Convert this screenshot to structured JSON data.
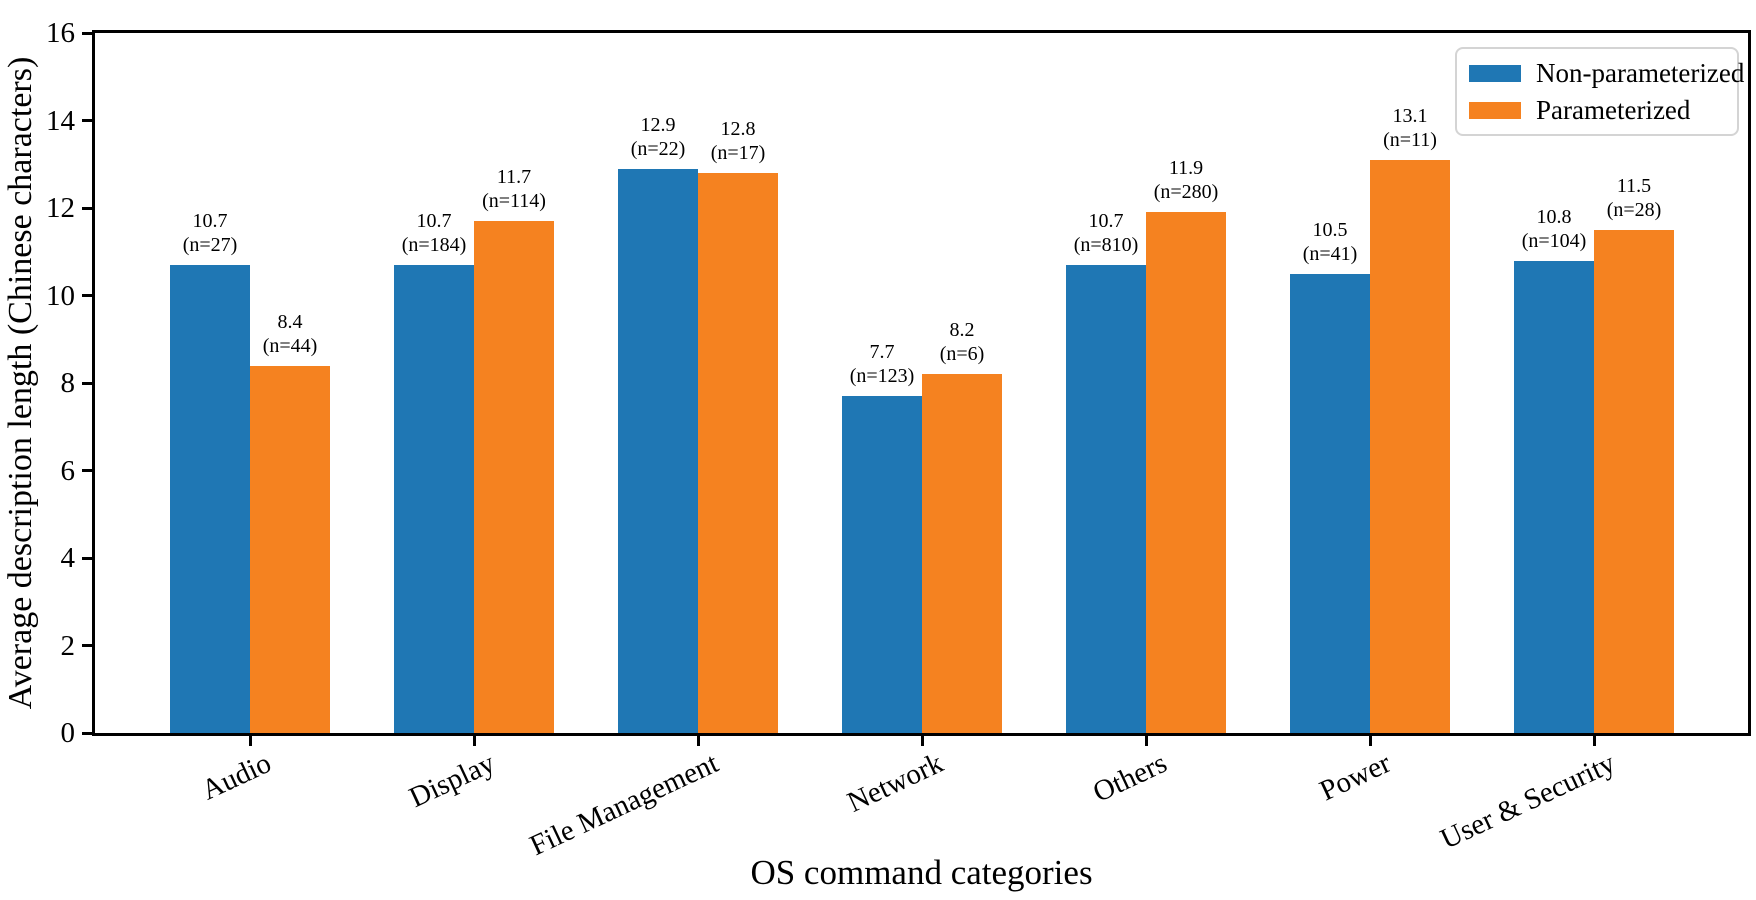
{
  "chart_data": {
    "type": "bar",
    "title": "",
    "xlabel": "OS command categories",
    "ylabel": "Average description length (Chinese characters)",
    "categories": [
      "Audio",
      "Display",
      "File Management",
      "Network",
      "Others",
      "Power",
      "User & Security"
    ],
    "series": [
      {
        "name": "Non-parameterized",
        "color": "#1f77b4",
        "values": [
          10.7,
          10.7,
          12.9,
          7.7,
          10.7,
          10.5,
          10.8
        ],
        "counts": [
          27,
          184,
          22,
          123,
          810,
          41,
          104
        ]
      },
      {
        "name": "Parameterized",
        "color": "#f58220",
        "values": [
          8.4,
          11.7,
          12.8,
          8.2,
          11.9,
          13.1,
          11.5
        ],
        "counts": [
          44,
          114,
          17,
          6,
          280,
          11,
          28
        ]
      }
    ],
    "annotations": {
      "non_parameterized": [
        "10.7\n(n=27)",
        "10.7\n(n=184)",
        "12.9\n(n=22)",
        "7.7\n(n=123)",
        "10.7\n(n=810)",
        "10.5\n(n=41)",
        "10.8\n(n=104)"
      ],
      "parameterized": [
        "8.4\n(n=44)",
        "11.7\n(n=114)",
        "12.8\n(n=17)",
        "8.2\n(n=6)",
        "11.9\n(n=280)",
        "13.1\n(n=11)",
        "11.5\n(n=28)"
      ]
    },
    "ylim": [
      0,
      16
    ],
    "yticks": [
      0,
      2,
      4,
      6,
      8,
      10,
      12,
      14,
      16
    ],
    "grid": false,
    "legend_position": "upper right",
    "axis_color": "#000000",
    "background_color": "#ffffff"
  }
}
